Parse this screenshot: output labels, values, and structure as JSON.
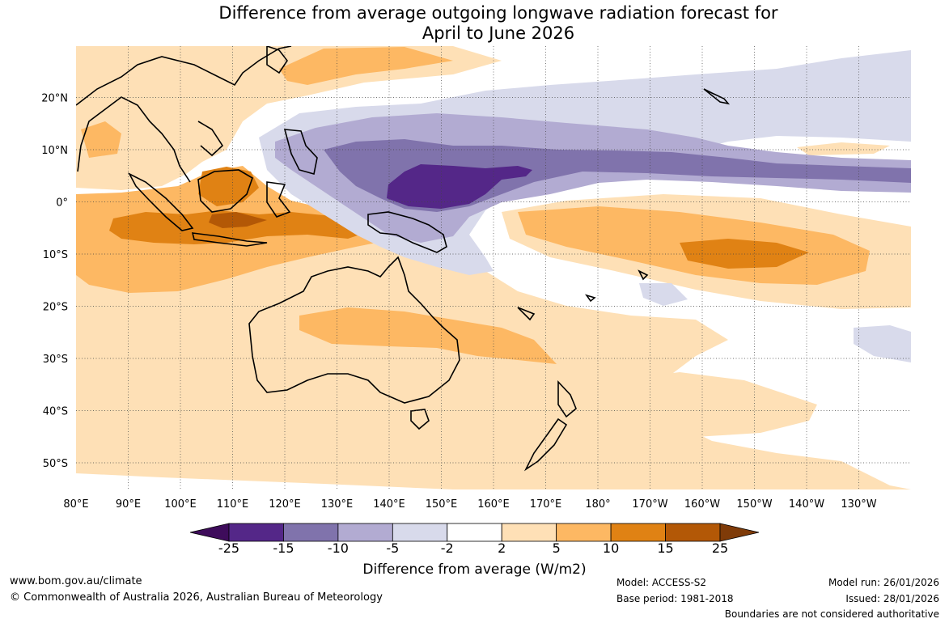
{
  "title": {
    "line1": "Difference from average outgoing longwave radiation forecast for",
    "line2": "April to June 2026"
  },
  "axes": {
    "lat_labels": [
      "20°N",
      "10°N",
      "0°",
      "10°S",
      "20°S",
      "30°S",
      "40°S",
      "50°S"
    ],
    "lon_labels": [
      "80°E",
      "90°E",
      "100°E",
      "110°E",
      "120°E",
      "130°E",
      "140°E",
      "150°E",
      "160°E",
      "170°E",
      "180°",
      "170°W",
      "160°W",
      "150°W",
      "140°W",
      "130°W"
    ]
  },
  "colorbar": {
    "ticks": [
      "-25",
      "-15",
      "-10",
      "-5",
      "-2",
      "2",
      "5",
      "10",
      "15",
      "25"
    ],
    "colors": [
      "#3e0c5b",
      "#542788",
      "#8073ac",
      "#b2abd2",
      "#d8daeb",
      "#ffffff",
      "#fee0b6",
      "#fdb863",
      "#e08214",
      "#b35806",
      "#7f3b08"
    ],
    "label": "Difference from average (W/m2)"
  },
  "footer": {
    "website": "www.bom.gov.au/climate",
    "copyright": "© Commonwealth of Australia 2026, Australian Bureau of Meteorology",
    "model": "Model: ACCESS-S2",
    "base_period": "Base period: 1981-2018",
    "model_run": "Model run: 26/01/2026",
    "issued": "Issued: 28/01/2026",
    "disclaimer": "Boundaries are not considered authoritative"
  }
}
